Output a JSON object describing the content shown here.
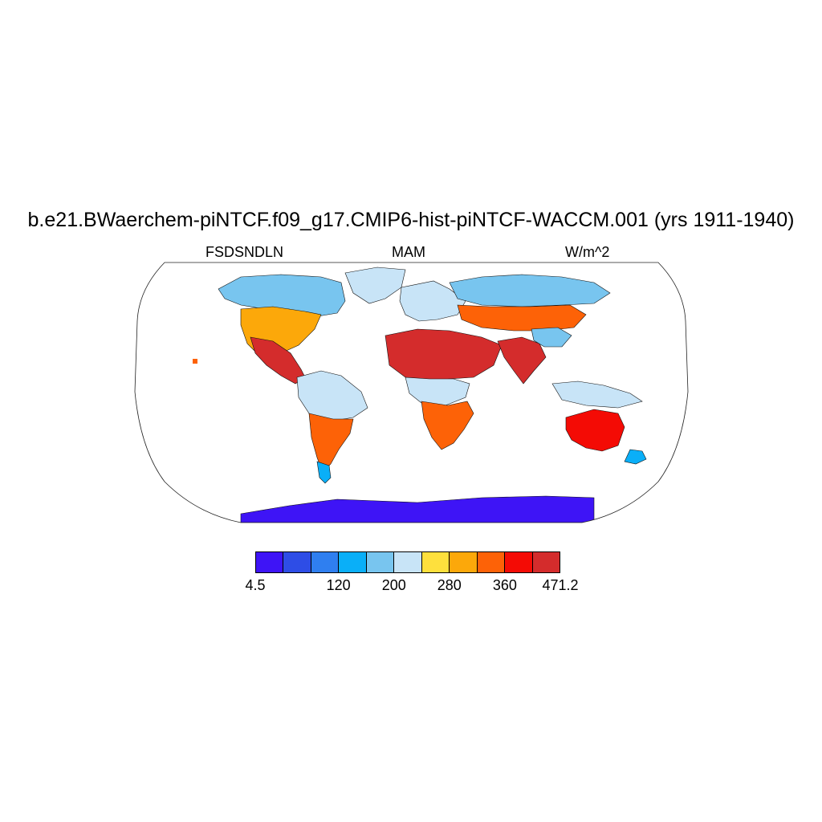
{
  "title": "b.e21.BWaerchem-piNTCF.f09_g17.CMIP6-hist-piNTCF-WACCM.001 (yrs 1911-1940)",
  "left_label": "FSDSNDLN",
  "center_label": "MAM",
  "right_label": "W/m^2",
  "colorbar": {
    "colors": [
      "#3e14f6",
      "#2e4de6",
      "#2f7ff0",
      "#0aaff8",
      "#78c5ef",
      "#c8e4f7",
      "#fee03d",
      "#fca80a",
      "#fd6207",
      "#f40b05",
      "#d42c2c"
    ],
    "labels": [
      {
        "text": "4.5",
        "index": 0
      },
      {
        "text": "120",
        "index": 3
      },
      {
        "text": "200",
        "index": 5
      },
      {
        "text": "280",
        "index": 7
      },
      {
        "text": "360",
        "index": 9
      },
      {
        "text": "471.2",
        "index": 11
      }
    ]
  },
  "map": {
    "projection": "Robinson",
    "variable": "FSDSNDLN",
    "season": "MAM",
    "units": "W/m^2",
    "regions": [
      {
        "name": "greenland",
        "level": 5
      },
      {
        "name": "canada-arctic",
        "level": 4
      },
      {
        "name": "north-america",
        "level": 7
      },
      {
        "name": "mexico",
        "level": 10
      },
      {
        "name": "south-america-north",
        "level": 5
      },
      {
        "name": "south-america-south",
        "level": 8
      },
      {
        "name": "patagonia",
        "level": 3
      },
      {
        "name": "europe",
        "level": 5
      },
      {
        "name": "sahara-arabia",
        "level": 10
      },
      {
        "name": "central-africa",
        "level": 5
      },
      {
        "name": "southern-africa",
        "level": 8
      },
      {
        "name": "siberia",
        "level": 4
      },
      {
        "name": "central-asia",
        "level": 8
      },
      {
        "name": "india",
        "level": 10
      },
      {
        "name": "tibet",
        "level": 4
      },
      {
        "name": "maritime-continent",
        "level": 5
      },
      {
        "name": "australia",
        "level": 9
      },
      {
        "name": "new-zealand",
        "level": 3
      },
      {
        "name": "antarctica",
        "level": 0
      }
    ]
  }
}
